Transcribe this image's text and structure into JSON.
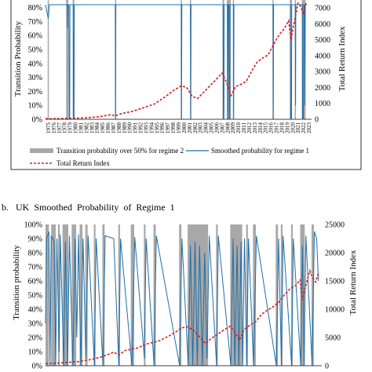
{
  "chart_data": [
    {
      "type": "bar+line",
      "panel_label": "",
      "title": "",
      "ylabel": "Transition Probability",
      "y2label": "Total Return Index",
      "yticks": [
        "0%",
        "10%",
        "20%",
        "30%",
        "40%",
        "50%",
        "60%",
        "70%",
        "80%"
      ],
      "y2ticks": [
        "0",
        "1000",
        "2000",
        "3000",
        "4000",
        "5000",
        "6000",
        "7000"
      ],
      "ylim": [
        0,
        0.82
      ],
      "y2lim": [
        0,
        7200
      ],
      "x_years": [
        "1975",
        "1976",
        "1977",
        "1978",
        "1979",
        "1980",
        "1981",
        "1982",
        "1983",
        "1984",
        "1985",
        "1986",
        "1987",
        "1988",
        "1989",
        "1990",
        "1991",
        "1992",
        "1993",
        "1994",
        "1995",
        "1996",
        "1997",
        "1998",
        "1999",
        "2000",
        "2001",
        "2002",
        "2003",
        "2004",
        "2005",
        "2006",
        "2007",
        "2008",
        "2009",
        "2010",
        "2011",
        "2012",
        "2013",
        "2014",
        "2015",
        "2016",
        "2017",
        "2018",
        "2019",
        "2020",
        "2021",
        "2022",
        "2023"
      ],
      "legend": [
        "Transition probability over 50% for regime 2",
        "Smoothed probability for regime 1",
        "Total Return Index"
      ],
      "regime2_periods": [
        [
          1975.4,
          1975.6
        ],
        [
          1978.8,
          1979.2
        ],
        [
          1980.0,
          1980.3
        ],
        [
          1987.8,
          1987.95
        ],
        [
          1999.9,
          2000.1
        ],
        [
          2001.6,
          2001.8
        ],
        [
          2007.6,
          2007.9
        ],
        [
          2008.4,
          2009.1
        ],
        [
          2009.5,
          2009.7
        ],
        [
          2016.8,
          2017.0
        ],
        [
          2020.0,
          2020.4
        ],
        [
          2020.9,
          2021.1
        ],
        [
          2022.2,
          2022.9
        ]
      ],
      "smoothed_probability": [
        [
          1975.0,
          0.82
        ],
        [
          1975.5,
          0.72
        ],
        [
          1975.7,
          0.82
        ],
        [
          1979.0,
          0.82
        ],
        [
          1979.05,
          0.65
        ],
        [
          1979.1,
          0.82
        ],
        [
          1979.3,
          0.82
        ],
        [
          1979.35,
          0.0
        ],
        [
          1979.45,
          0.0
        ],
        [
          1979.5,
          0.82
        ],
        [
          1980.1,
          0.82
        ],
        [
          1980.15,
          0.0
        ],
        [
          1980.25,
          0.0
        ],
        [
          1980.3,
          0.82
        ],
        [
          1987.85,
          0.82
        ],
        [
          1987.9,
          0.0
        ],
        [
          1987.95,
          0.82
        ],
        [
          2000.0,
          0.82
        ],
        [
          2000.05,
          0.0
        ],
        [
          2000.1,
          0.82
        ],
        [
          2001.7,
          0.82
        ],
        [
          2001.75,
          0.0
        ],
        [
          2001.8,
          0.82
        ],
        [
          2007.7,
          0.82
        ],
        [
          2007.75,
          0.0
        ],
        [
          2007.85,
          0.0
        ],
        [
          2007.9,
          0.82
        ],
        [
          2008.5,
          0.82
        ],
        [
          2008.55,
          0.0
        ],
        [
          2008.65,
          0.82
        ],
        [
          2008.8,
          0.82
        ],
        [
          2008.85,
          0.0
        ],
        [
          2008.95,
          0.0
        ],
        [
          2009.0,
          0.82
        ],
        [
          2009.6,
          0.82
        ],
        [
          2009.65,
          0.0
        ],
        [
          2009.7,
          0.82
        ],
        [
          2016.9,
          0.82
        ],
        [
          2016.95,
          0.0
        ],
        [
          2017.0,
          0.82
        ],
        [
          2020.1,
          0.82
        ],
        [
          2020.15,
          0.0
        ],
        [
          2020.3,
          0.0
        ],
        [
          2020.35,
          0.82
        ],
        [
          2021.0,
          0.82
        ],
        [
          2021.05,
          0.1
        ],
        [
          2021.1,
          0.82
        ],
        [
          2022.3,
          0.82
        ],
        [
          2022.35,
          0.0
        ],
        [
          2022.5,
          0.0
        ],
        [
          2022.55,
          0.82
        ],
        [
          2022.7,
          0.82
        ],
        [
          2022.75,
          0.1
        ],
        [
          2022.85,
          0.82
        ],
        [
          2023.0,
          0.82
        ]
      ],
      "total_return_index": [
        [
          1975.0,
          40
        ],
        [
          1977.0,
          45
        ],
        [
          1979.0,
          55
        ],
        [
          1981.0,
          70
        ],
        [
          1983.0,
          110
        ],
        [
          1985.0,
          170
        ],
        [
          1987.0,
          290
        ],
        [
          1987.9,
          220
        ],
        [
          1989.0,
          360
        ],
        [
          1991.0,
          500
        ],
        [
          1993.0,
          720
        ],
        [
          1995.0,
          950
        ],
        [
          1997.0,
          1400
        ],
        [
          1998.5,
          1800
        ],
        [
          2000.0,
          2100
        ],
        [
          2001.0,
          2000
        ],
        [
          2002.0,
          1450
        ],
        [
          2003.0,
          1300
        ],
        [
          2004.0,
          1650
        ],
        [
          2006.0,
          2350
        ],
        [
          2007.5,
          2900
        ],
        [
          2008.0,
          2600
        ],
        [
          2009.2,
          1500
        ],
        [
          2010.0,
          2050
        ],
        [
          2011.0,
          2200
        ],
        [
          2012.0,
          2400
        ],
        [
          2013.0,
          3050
        ],
        [
          2014.0,
          3600
        ],
        [
          2015.0,
          3850
        ],
        [
          2016.0,
          4050
        ],
        [
          2017.0,
          4700
        ],
        [
          2018.0,
          5300
        ],
        [
          2019.0,
          5700
        ],
        [
          2019.8,
          6200
        ],
        [
          2020.2,
          5000
        ],
        [
          2020.8,
          6100
        ],
        [
          2021.5,
          7300
        ],
        [
          2022.0,
          7100
        ],
        [
          2022.5,
          6600
        ],
        [
          2023.0,
          7300
        ]
      ]
    },
    {
      "type": "bar+line",
      "panel_label": "b.",
      "title": "UK  Smoothed  Probability  of  Regime  1",
      "ylabel": "Transition probability",
      "y2label": "Total Return Index",
      "yticks": [
        "0%",
        "10%",
        "20%",
        "30%",
        "40%",
        "50%",
        "60%",
        "70%",
        "80%",
        "90%",
        "100%"
      ],
      "y2ticks": [
        "0",
        "5000",
        "10000",
        "15000",
        "20000",
        "25000"
      ],
      "ylim": [
        0,
        1.0
      ],
      "y2lim": [
        0,
        25000
      ],
      "regime2_periods": [
        [
          1975.0,
          1975.6
        ],
        [
          1976.0,
          1976.8
        ],
        [
          1977.2,
          1977.5
        ],
        [
          1978.0,
          1979.0
        ],
        [
          1979.6,
          1980.4
        ],
        [
          1981.0,
          1981.5
        ],
        [
          1982.0,
          1982.4
        ],
        [
          1983.5,
          1983.8
        ],
        [
          1985.0,
          1985.4
        ],
        [
          1987.8,
          1988.1
        ],
        [
          1990.0,
          1990.6
        ],
        [
          1992.3,
          1992.6
        ],
        [
          1994.0,
          1994.4
        ],
        [
          1998.5,
          1998.9
        ],
        [
          2000.0,
          2003.6
        ],
        [
          2005.0,
          2005.3
        ],
        [
          2007.5,
          2009.6
        ],
        [
          2010.3,
          2010.6
        ],
        [
          2011.5,
          2012.0
        ],
        [
          2015.5,
          2015.9
        ],
        [
          2016.4,
          2016.7
        ],
        [
          2018.2,
          2018.5
        ],
        [
          2019.8,
          2020.6
        ],
        [
          2021.8,
          2022.2
        ]
      ],
      "smoothed_probability": [
        [
          1975.0,
          0.3
        ],
        [
          1975.2,
          0.9
        ],
        [
          1975.6,
          0.95
        ],
        [
          1975.8,
          0.0
        ],
        [
          1976.0,
          0.92
        ],
        [
          1976.5,
          0.88
        ],
        [
          1976.8,
          0.0
        ],
        [
          1977.0,
          0.9
        ],
        [
          1977.4,
          0.1
        ],
        [
          1977.6,
          0.93
        ],
        [
          1978.2,
          0.0
        ],
        [
          1978.5,
          0.88
        ],
        [
          1978.9,
          0.0
        ],
        [
          1979.2,
          0.92
        ],
        [
          1979.8,
          0.0
        ],
        [
          1980.2,
          0.9
        ],
        [
          1980.5,
          0.2
        ],
        [
          1980.8,
          0.93
        ],
        [
          1981.2,
          0.0
        ],
        [
          1981.6,
          0.9
        ],
        [
          1982.1,
          0.05
        ],
        [
          1982.5,
          0.92
        ],
        [
          1983.6,
          0.0
        ],
        [
          1983.9,
          0.9
        ],
        [
          1985.1,
          0.0
        ],
        [
          1985.5,
          0.92
        ],
        [
          1987.0,
          0.9
        ],
        [
          1987.9,
          0.0
        ],
        [
          1988.2,
          0.9
        ],
        [
          1990.2,
          0.0
        ],
        [
          1990.7,
          0.91
        ],
        [
          1992.4,
          0.05
        ],
        [
          1992.7,
          0.9
        ],
        [
          1994.1,
          0.0
        ],
        [
          1994.5,
          0.92
        ],
        [
          1998.6,
          0.0
        ],
        [
          1999.0,
          0.9
        ],
        [
          2000.1,
          0.0
        ],
        [
          2000.5,
          0.85
        ],
        [
          2000.9,
          0.0
        ],
        [
          2001.3,
          0.88
        ],
        [
          2001.7,
          0.0
        ],
        [
          2002.1,
          0.85
        ],
        [
          2002.6,
          0.0
        ],
        [
          2003.0,
          0.8
        ],
        [
          2003.4,
          0.05
        ],
        [
          2003.8,
          0.92
        ],
        [
          2005.1,
          0.0
        ],
        [
          2005.4,
          0.92
        ],
        [
          2007.6,
          0.0
        ],
        [
          2008.0,
          0.9
        ],
        [
          2008.3,
          0.0
        ],
        [
          2008.7,
          0.85
        ],
        [
          2009.0,
          0.0
        ],
        [
          2009.4,
          0.88
        ],
        [
          2009.7,
          0.0
        ],
        [
          2010.0,
          0.9
        ],
        [
          2010.4,
          0.0
        ],
        [
          2010.7,
          0.9
        ],
        [
          2011.6,
          0.0
        ],
        [
          2012.1,
          0.92
        ],
        [
          2015.6,
          0.0
        ],
        [
          2016.0,
          0.9
        ],
        [
          2016.5,
          0.0
        ],
        [
          2016.8,
          0.92
        ],
        [
          2018.3,
          0.0
        ],
        [
          2018.6,
          0.9
        ],
        [
          2019.9,
          0.0
        ],
        [
          2020.2,
          0.85
        ],
        [
          2020.5,
          0.0
        ],
        [
          2020.8,
          0.92
        ],
        [
          2021.9,
          0.0
        ],
        [
          2022.3,
          0.95
        ],
        [
          2022.7,
          0.9
        ],
        [
          2023.0,
          0.6
        ]
      ],
      "total_return_index": [
        [
          1975.0,
          400
        ],
        [
          1977.0,
          450
        ],
        [
          1979.0,
          600
        ],
        [
          1981.0,
          750
        ],
        [
          1983.0,
          1100
        ],
        [
          1985.0,
          1600
        ],
        [
          1987.0,
          2400
        ],
        [
          1987.9,
          1900
        ],
        [
          1989.0,
          2700
        ],
        [
          1991.0,
          3100
        ],
        [
          1993.0,
          3900
        ],
        [
          1995.0,
          4400
        ],
        [
          1997.0,
          5400
        ],
        [
          1999.0,
          6700
        ],
        [
          2000.0,
          6900
        ],
        [
          2001.0,
          6300
        ],
        [
          2002.0,
          5200
        ],
        [
          2003.2,
          3900
        ],
        [
          2004.0,
          4700
        ],
        [
          2006.0,
          6100
        ],
        [
          2007.5,
          7000
        ],
        [
          2008.2,
          6100
        ],
        [
          2009.1,
          4500
        ],
        [
          2010.0,
          6500
        ],
        [
          2011.0,
          7200
        ],
        [
          2012.0,
          7800
        ],
        [
          2013.0,
          9100
        ],
        [
          2014.0,
          9800
        ],
        [
          2015.0,
          10400
        ],
        [
          2016.0,
          11200
        ],
        [
          2017.0,
          12500
        ],
        [
          2018.0,
          13600
        ],
        [
          2019.0,
          14200
        ],
        [
          2019.8,
          15200
        ],
        [
          2020.2,
          11600
        ],
        [
          2020.7,
          13900
        ],
        [
          2021.5,
          16800
        ],
        [
          2022.0,
          15600
        ],
        [
          2022.5,
          14800
        ],
        [
          2023.0,
          16400
        ]
      ]
    }
  ]
}
